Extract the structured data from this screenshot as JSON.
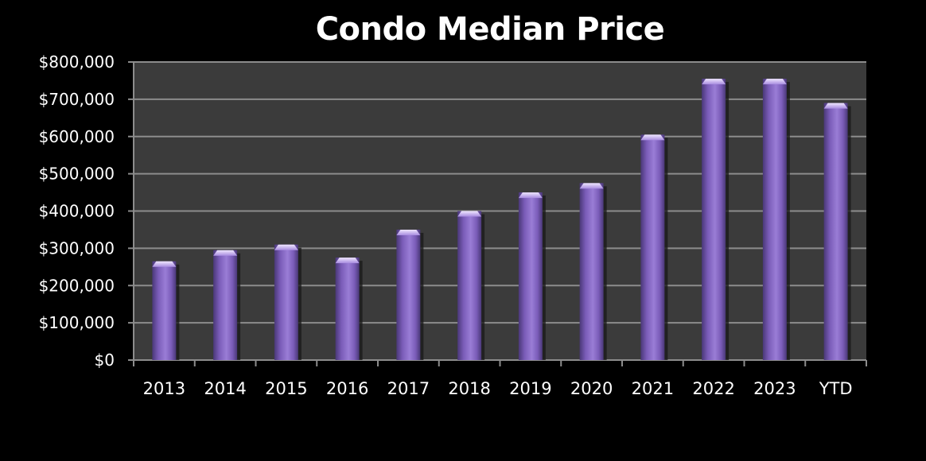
{
  "chart_data": {
    "type": "bar",
    "title": "Condo Median Price",
    "xlabel": "",
    "ylabel": "",
    "categories": [
      "2013",
      "2014",
      "2015",
      "2016",
      "2017",
      "2018",
      "2019",
      "2020",
      "2021",
      "2022",
      "2023",
      "YTD"
    ],
    "values": [
      265000,
      295000,
      310000,
      275000,
      350000,
      400000,
      450000,
      475000,
      605000,
      755000,
      755000,
      690000
    ],
    "ylim": [
      0,
      800000
    ],
    "yticks": [
      0,
      100000,
      200000,
      300000,
      400000,
      500000,
      600000,
      700000,
      800000
    ],
    "ytick_labels": [
      "$0",
      "$100,000",
      "$200,000",
      "$300,000",
      "$400,000",
      "$500,000",
      "$600,000",
      "$700,000",
      "$800,000"
    ],
    "grid": true,
    "legend": "none",
    "colors": {
      "bar": "#8a6cc8",
      "bar_top": "#d9cbff",
      "plot_background": "#3b3b3b",
      "page_background": "#000000",
      "grid": "#8c8c8c",
      "text": "#ffffff"
    }
  }
}
